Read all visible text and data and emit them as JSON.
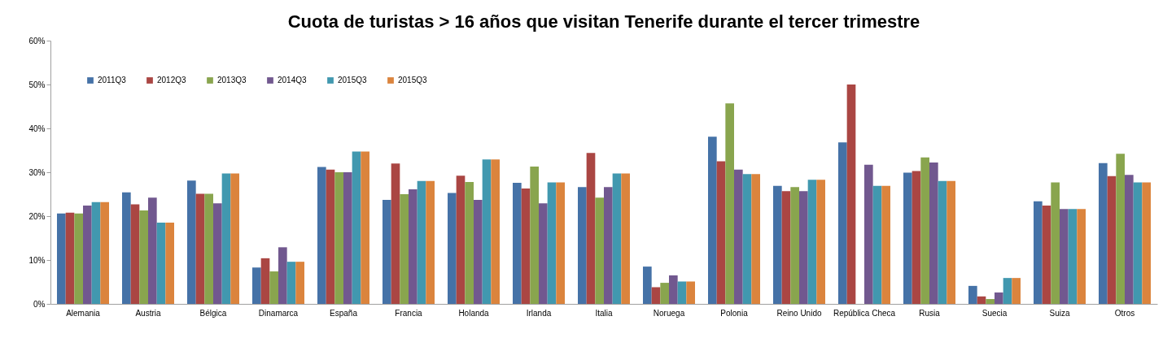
{
  "chart_data": {
    "type": "bar",
    "title": "Cuota de turistas > 16 años que visitan Tenerife durante el tercer trimestre",
    "categories": [
      "Alemania",
      "Austria",
      "Bélgica",
      "Dinamarca",
      "España",
      "Francia",
      "Holanda",
      "Irlanda",
      "Italia",
      "Noruega",
      "Polonia",
      "Reino Unido",
      "República Checa",
      "Rusia",
      "Suecia",
      "Suiza",
      "Otros"
    ],
    "series": [
      {
        "name": "2011Q3",
        "color": "#4572a7",
        "values": [
          20.6,
          25.4,
          28.1,
          8.3,
          31.2,
          23.7,
          25.3,
          27.6,
          26.6,
          8.5,
          38.1,
          26.9,
          36.8,
          29.9,
          4.1,
          23.4,
          32.1
        ]
      },
      {
        "name": "2012Q3",
        "color": "#aa4643",
        "values": [
          20.8,
          22.7,
          25.1,
          10.4,
          30.6,
          32.0,
          29.2,
          26.3,
          34.4,
          3.8,
          32.5,
          25.7,
          50.0,
          30.3,
          1.7,
          22.4,
          29.1
        ]
      },
      {
        "name": "2013Q3",
        "color": "#89a54e",
        "values": [
          20.6,
          21.3,
          25.1,
          7.4,
          30.0,
          25.0,
          27.8,
          31.3,
          24.2,
          4.8,
          45.7,
          26.6,
          null,
          33.4,
          1.1,
          27.7,
          34.2
        ]
      },
      {
        "name": "2014Q3",
        "color": "#71588f",
        "values": [
          22.4,
          24.2,
          22.9,
          12.9,
          30.0,
          26.1,
          23.7,
          22.9,
          26.6,
          6.5,
          30.6,
          25.7,
          31.7,
          32.2,
          2.6,
          21.6,
          29.4
        ]
      },
      {
        "name": "2015Q3",
        "color": "#4198af",
        "values": [
          23.2,
          18.5,
          29.7,
          9.6,
          34.7,
          28.0,
          32.9,
          27.7,
          29.7,
          5.1,
          29.6,
          28.3,
          26.9,
          28.0,
          5.9,
          21.6,
          27.7
        ]
      },
      {
        "name": "2015Q3",
        "color": "#db843d",
        "values": [
          23.2,
          18.5,
          29.7,
          9.6,
          34.7,
          28.0,
          32.9,
          27.7,
          29.7,
          5.1,
          29.6,
          28.3,
          26.9,
          28.0,
          5.9,
          21.6,
          27.7
        ]
      }
    ],
    "ylim": [
      0,
      60
    ],
    "yticks": [
      {
        "value": 0,
        "label": "0%"
      },
      {
        "value": 10,
        "label": "10%"
      },
      {
        "value": 20,
        "label": "20%"
      },
      {
        "value": 30,
        "label": "30%"
      },
      {
        "value": 40,
        "label": "40%"
      },
      {
        "value": 50,
        "label": "50%"
      },
      {
        "value": 60,
        "label": "60%"
      }
    ],
    "legend": "top left"
  }
}
